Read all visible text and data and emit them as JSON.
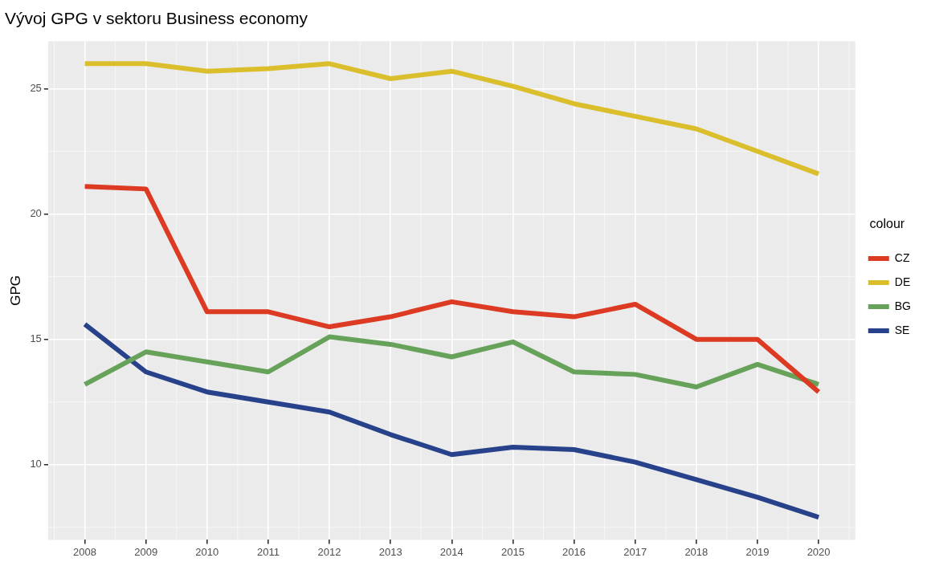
{
  "chart_data": {
    "type": "line",
    "title": "Vývoj GPG v sektoru Business economy",
    "ylabel": "GPG",
    "legend_title": "colour",
    "legend": "right",
    "grid": true,
    "x": [
      2008,
      2009,
      2010,
      2011,
      2012,
      2013,
      2014,
      2015,
      2016,
      2017,
      2018,
      2019,
      2020
    ],
    "xlim": [
      2007.4,
      2020.6
    ],
    "xticks": [
      2008,
      2009,
      2010,
      2011,
      2012,
      2013,
      2014,
      2015,
      2016,
      2017,
      2018,
      2019,
      2020
    ],
    "ylim": [
      7.0,
      26.9
    ],
    "yticks": [
      10,
      15,
      20,
      25
    ],
    "series": [
      {
        "name": "CZ",
        "color": "#dc3a22",
        "values": [
          21.1,
          21.0,
          16.1,
          16.1,
          15.5,
          15.9,
          16.5,
          16.1,
          15.9,
          16.4,
          15.0,
          15.0,
          12.9
        ]
      },
      {
        "name": "DE",
        "color": "#dbbe2c",
        "values": [
          26.0,
          26.0,
          25.7,
          25.8,
          26.0,
          25.4,
          25.7,
          25.1,
          24.4,
          23.9,
          23.4,
          22.5,
          21.6
        ]
      },
      {
        "name": "BG",
        "color": "#67a25a",
        "values": [
          13.2,
          14.5,
          14.1,
          13.7,
          15.1,
          14.8,
          14.3,
          14.9,
          13.7,
          13.6,
          13.1,
          14.0,
          13.2
        ]
      },
      {
        "name": "SE",
        "color": "#27428a",
        "values": [
          15.6,
          13.7,
          12.9,
          12.5,
          12.1,
          11.2,
          10.4,
          10.7,
          10.6,
          10.1,
          9.4,
          8.7,
          7.9
        ]
      }
    ]
  }
}
